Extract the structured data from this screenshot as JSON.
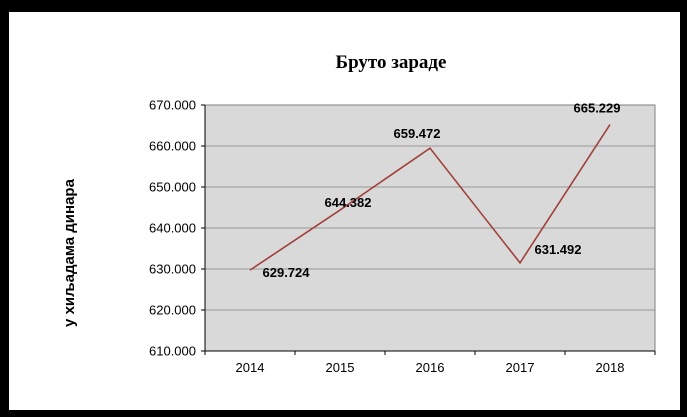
{
  "chart_data": {
    "type": "line",
    "title": "Бруто зараде",
    "ylabel": "у хиљадама динара",
    "xlabel": "",
    "categories": [
      "2014",
      "2015",
      "2016",
      "2017",
      "2018"
    ],
    "x_tick_labels": [
      "2014",
      "2015",
      "2016",
      "2017",
      "2018"
    ],
    "ylim": [
      610,
      670
    ],
    "y_ticks": [
      610,
      620,
      630,
      640,
      650,
      660,
      670
    ],
    "y_tick_labels": [
      "610.000",
      "620.000",
      "630.000",
      "640.000",
      "650.000",
      "660.000",
      "670.000"
    ],
    "series": [
      {
        "values": [
          629.724,
          644.382,
          659.472,
          631.492,
          665.229
        ],
        "labels": [
          "629.724",
          "644.382",
          "659.472",
          "631.492",
          "665.229"
        ],
        "color": "#a0403a"
      }
    ],
    "grid": "horizontal",
    "plot_background": "#d9d9d9",
    "legend": "none"
  }
}
